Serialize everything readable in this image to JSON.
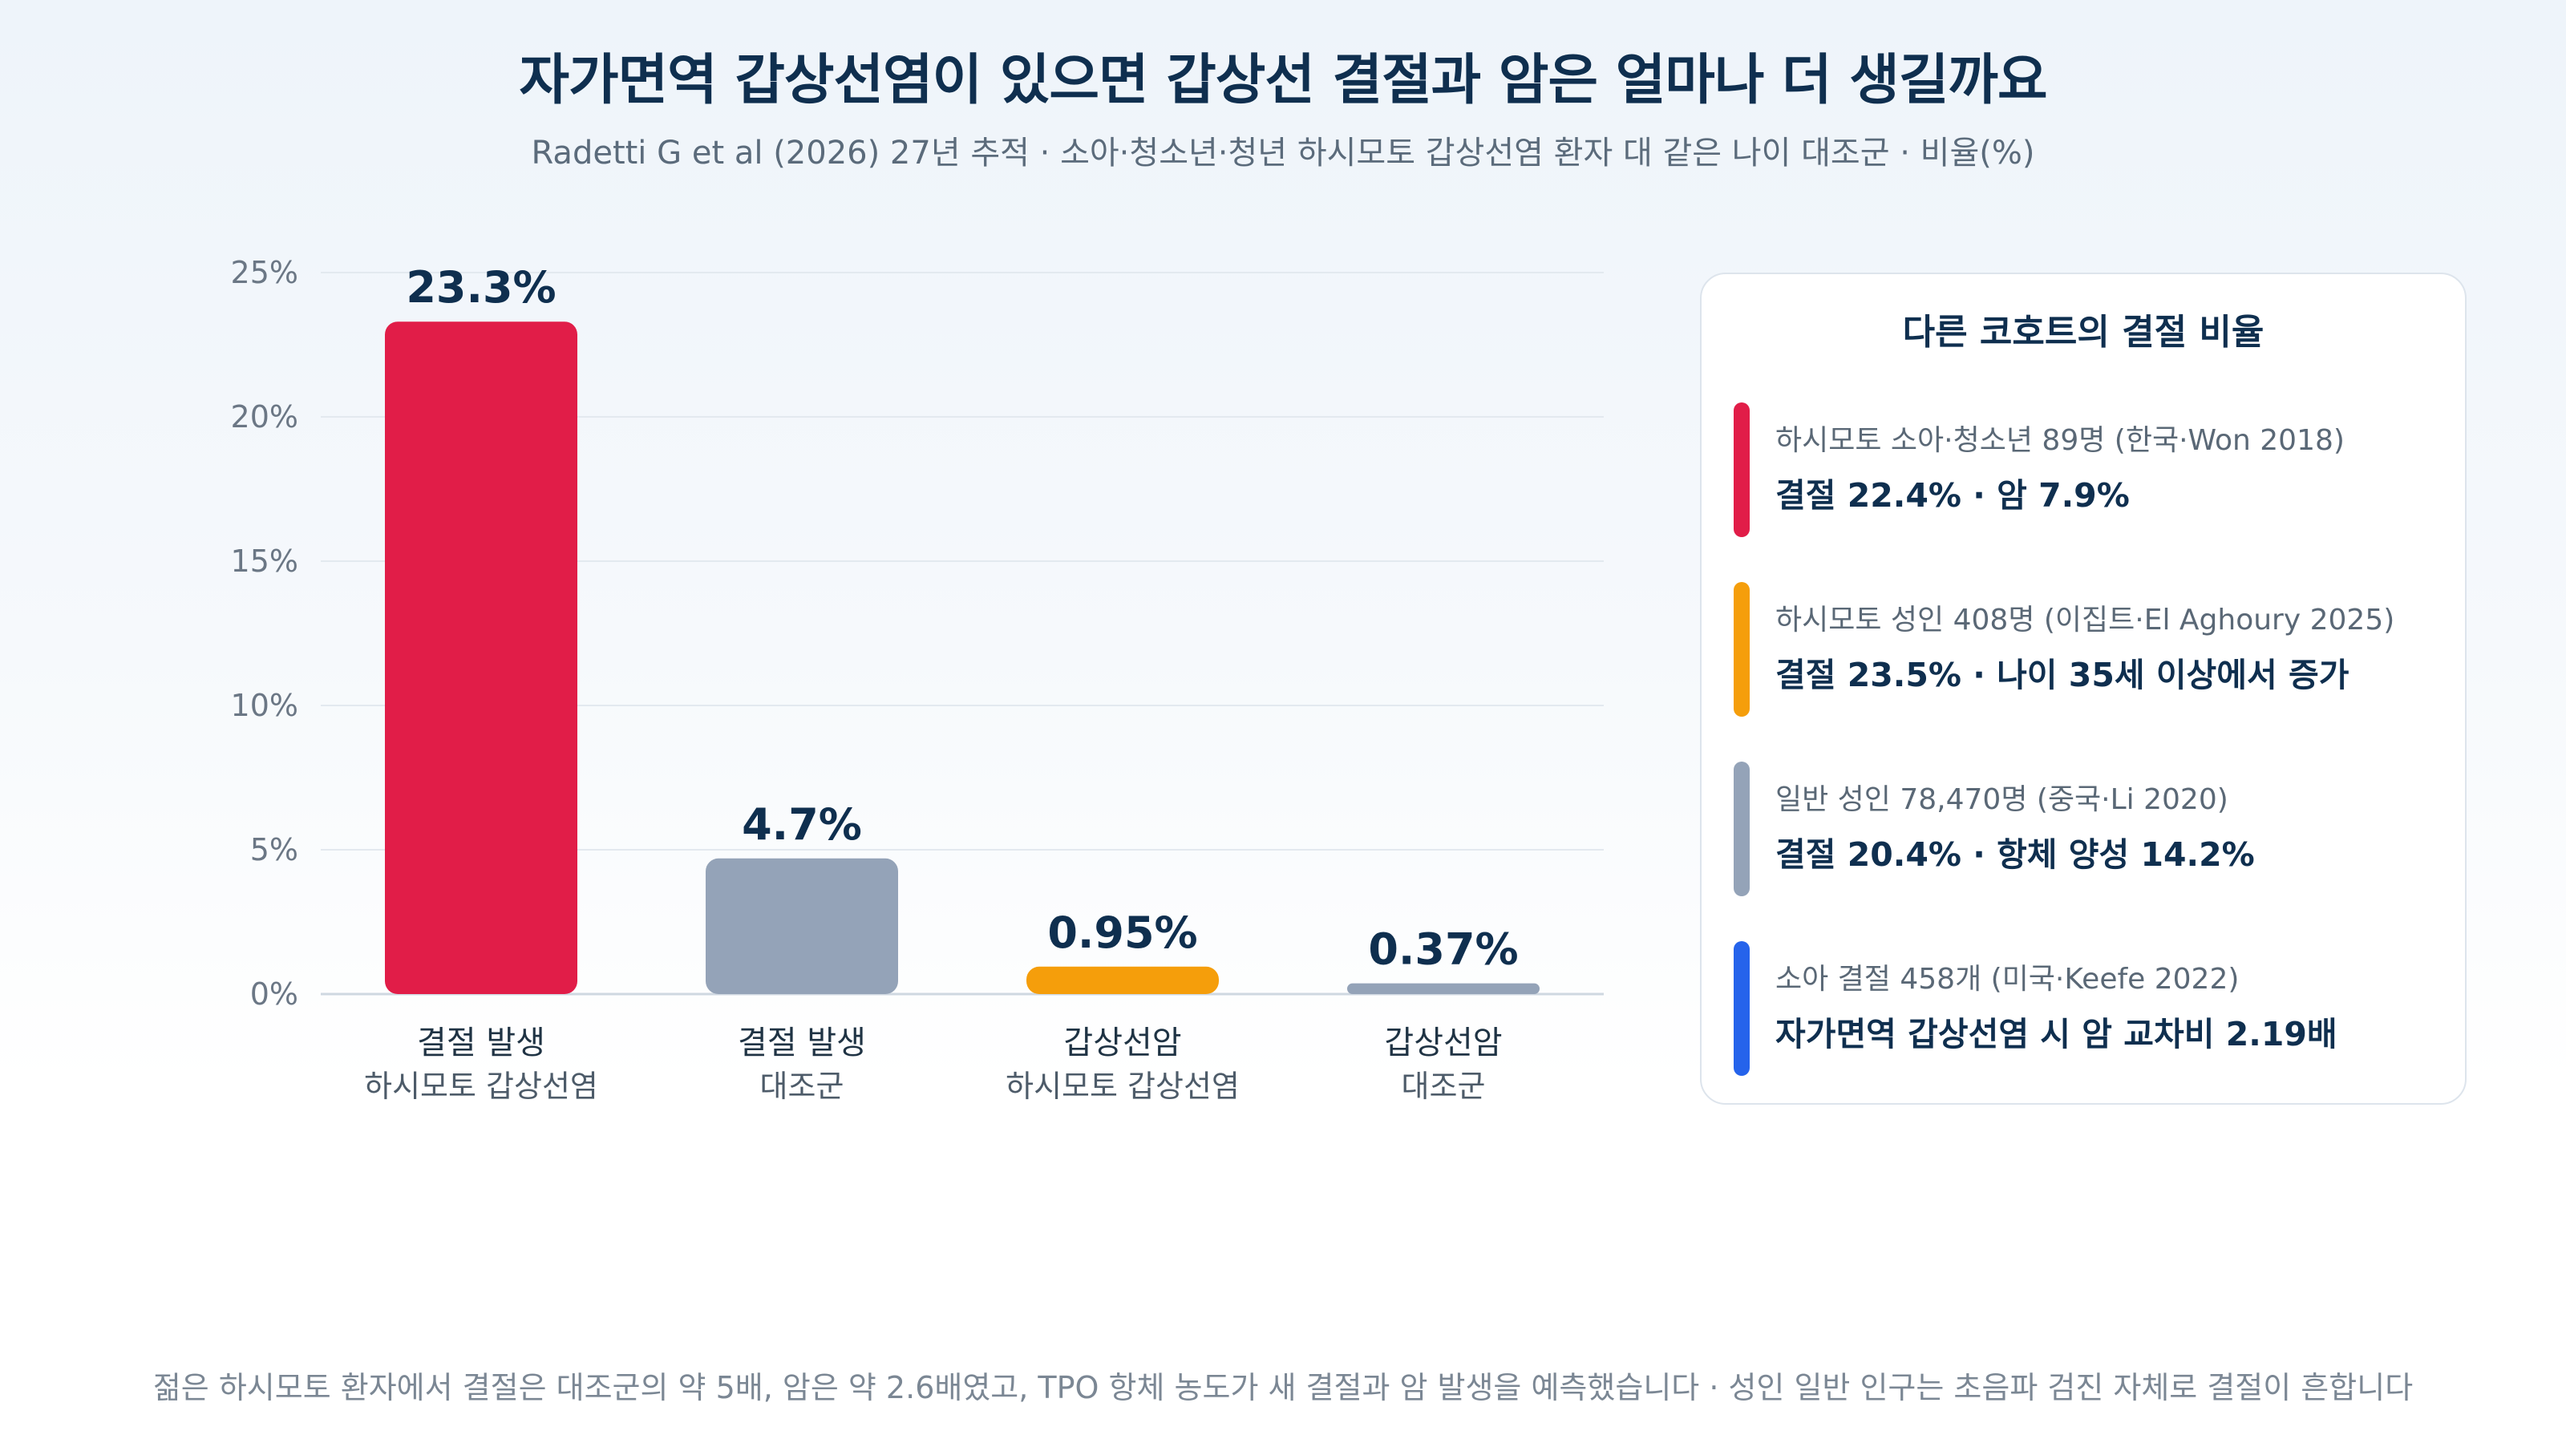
{
  "header": {
    "title": "자가면역 갑상선염이 있으면 갑상선 결절과 암은 얼마나 더 생길까요",
    "subtitle": "Radetti G et al (2026) 27년 추적 · 소아·청소년·청년 하시모토 갑상선염 환자 대 같은 나이 대조군 · 비율(%)"
  },
  "chart_data": {
    "type": "bar",
    "categories": [
      [
        "결절 발생",
        "하시모토 갑상선염"
      ],
      [
        "결절 발생",
        "대조군"
      ],
      [
        "갑상선암",
        "하시모토 갑상선염"
      ],
      [
        "갑상선암",
        "대조군"
      ]
    ],
    "values": [
      23.3,
      4.7,
      0.95,
      0.37
    ],
    "value_labels": [
      "23.3%",
      "4.7%",
      "0.95%",
      "0.37%"
    ],
    "bar_colors": [
      "#e11d48",
      "#94a3b8",
      "#f59e0b",
      "#94a3b8"
    ],
    "ylim": [
      0,
      25
    ],
    "y_ticks": [
      0,
      5,
      10,
      15,
      20,
      25
    ],
    "y_tick_labels": [
      "0%",
      "5%",
      "10%",
      "15%",
      "20%",
      "25%"
    ],
    "grid": true,
    "legend": "none"
  },
  "panel": {
    "title": "다른 코호트의 결절 비율",
    "entries": [
      {
        "line1": "하시모토 소아·청소년 89명 (한국·Won 2018)",
        "line2": "결절 22.4% · 암 7.9%",
        "color": "#e11d48"
      },
      {
        "line1": "하시모토 성인 408명 (이집트·El Aghoury 2025)",
        "line2": "결절 23.5% · 나이 35세 이상에서 증가",
        "color": "#f59e0b"
      },
      {
        "line1": "일반 성인 78,470명 (중국·Li 2020)",
        "line2": "결절 20.4% · 항체 양성 14.2%",
        "color": "#94a3b8"
      },
      {
        "line1": "소아 결절 458개 (미국·Keefe 2022)",
        "line2": "자가면역 갑상선염 시 암 교차비 2.19배",
        "color": "#2563eb"
      }
    ]
  },
  "footnote": "젊은 하시모토 환자에서 결절은 대조군의 약 5배, 암은 약 2.6배였고, TPO 항체 농도가 새 결절과 암 발생을 예측했습니다 · 성인 일반 인구는 초음파 검진 자체로 결절이 흔합니다"
}
